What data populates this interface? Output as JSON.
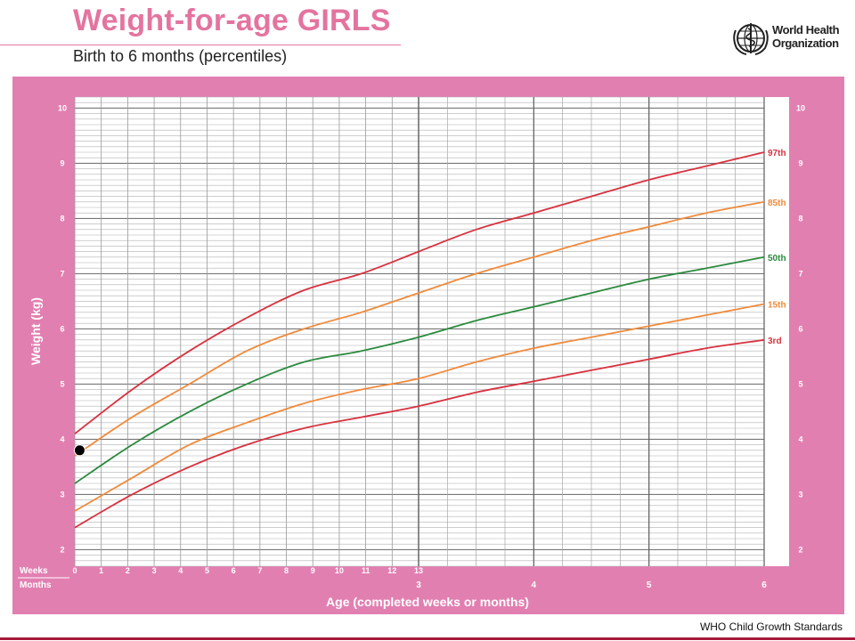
{
  "header": {
    "title": "Weight-for-age GIRLS",
    "subtitle": "Birth to 6 months (percentiles)",
    "org_line1": "World Health",
    "org_line2": "Organization"
  },
  "footer": {
    "text": "WHO Child Growth Standards"
  },
  "colors": {
    "panel_pink": "#e27fb1",
    "title_pink": "#e4749f",
    "red_curve": "#d8313f",
    "orange_curve": "#f08a3a",
    "green_curve": "#2b8a3e",
    "grid": "#9a9a9a",
    "footer_bar": "#a6193a"
  },
  "chart_data": {
    "type": "line",
    "xlabel": "Age (completed weeks or months)",
    "ylabel": "Weight (kg)",
    "xlim_months": [
      0,
      6
    ],
    "ylim": [
      1.7,
      10.2
    ],
    "y_ticks": [
      "2",
      "3",
      "4",
      "5",
      "6",
      "7",
      "8",
      "9",
      "10"
    ],
    "weeks_label": "Weeks",
    "months_label": "Months",
    "week_ticks": [
      "0",
      "1",
      "2",
      "3",
      "4",
      "5",
      "6",
      "7",
      "8",
      "9",
      "10",
      "11",
      "12",
      "13"
    ],
    "month_ticks": [
      "3",
      "4",
      "5",
      "6"
    ],
    "x_months": [
      0,
      0.5,
      1,
      1.5,
      2,
      2.5,
      3,
      3.5,
      4,
      4.5,
      5,
      5.5,
      6
    ],
    "series": [
      {
        "name": "97th",
        "color": "red",
        "values": [
          4.1,
          4.9,
          5.6,
          6.2,
          6.7,
          7.0,
          7.4,
          7.8,
          8.1,
          8.4,
          8.7,
          8.95,
          9.2
        ]
      },
      {
        "name": "85th",
        "color": "orange",
        "values": [
          3.7,
          4.4,
          5.0,
          5.6,
          6.0,
          6.3,
          6.65,
          7.0,
          7.3,
          7.6,
          7.85,
          8.1,
          8.3
        ]
      },
      {
        "name": "50th",
        "color": "green",
        "values": [
          3.2,
          3.9,
          4.5,
          5.0,
          5.4,
          5.6,
          5.85,
          6.15,
          6.4,
          6.65,
          6.9,
          7.1,
          7.3
        ]
      },
      {
        "name": "15th",
        "color": "orange",
        "values": [
          2.7,
          3.3,
          3.9,
          4.3,
          4.65,
          4.9,
          5.1,
          5.4,
          5.65,
          5.85,
          6.05,
          6.25,
          6.45
        ]
      },
      {
        "name": "3rd",
        "color": "red",
        "values": [
          2.4,
          3.0,
          3.5,
          3.9,
          4.2,
          4.4,
          4.6,
          4.85,
          5.05,
          5.25,
          5.45,
          5.65,
          5.8
        ]
      }
    ],
    "marker": {
      "x_months": 0.05,
      "y": 3.8
    },
    "grid": true,
    "legend": "curve-end labels on right"
  }
}
